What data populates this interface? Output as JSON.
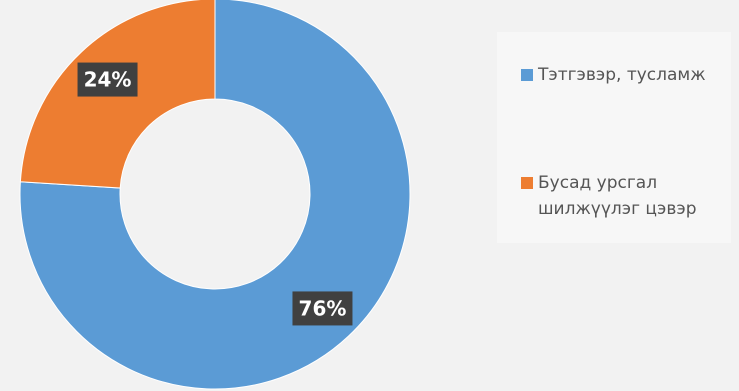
{
  "chart_data": {
    "type": "pie",
    "style": "donut",
    "categories": [
      "Тэтгэвэр, тусламж",
      "Бусад урсгал шилжүүлэг цэвэр"
    ],
    "values": [
      76,
      24
    ],
    "data_labels": [
      "76%",
      "24%"
    ],
    "colors": [
      "#5b9bd5",
      "#ed7d31"
    ],
    "legend": {
      "position": "right",
      "items": [
        {
          "line1": "Тэтгэвэр, тусламж",
          "line2": ""
        },
        {
          "line1": "Бусад урсгал",
          "line2": "шилжүүлэг цэвэр"
        }
      ]
    }
  }
}
